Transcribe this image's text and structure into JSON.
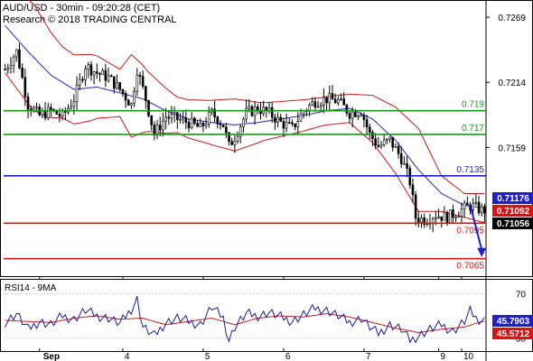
{
  "header": {
    "line1": "AUD/USD - 30min - 09:20:28 (CET)",
    "line2": "Research © 2018 TRADING CENTRAL"
  },
  "rsi_title": "RSI14 - 9MA",
  "chart_data": [
    {
      "type": "candlestick",
      "price_axis": {
        "ticks": [
          0.7269,
          0.7214,
          0.7159
        ],
        "labels": [
          "0.7269",
          "0.7214",
          "0.7159"
        ],
        "range": [
          0.7051,
          0.7282
        ]
      },
      "x_ticks": [
        {
          "label": "Sep",
          "bar": 12
        },
        {
          "label": "4",
          "bar": 41
        },
        {
          "label": "5",
          "bar": 69
        },
        {
          "label": "6",
          "bar": 97
        },
        {
          "label": "7",
          "bar": 125
        },
        {
          "label": "9",
          "bar": 151
        },
        {
          "label": "10",
          "bar": 159
        }
      ],
      "bars_count": 168,
      "levels": [
        {
          "value": 0.719,
          "label": "0.719",
          "color": "#1a9a1a"
        },
        {
          "value": 0.717,
          "label": "0.717",
          "color": "#1a9a1a"
        },
        {
          "value": 0.7135,
          "label": "0.7135",
          "color": "#1f1fcf"
        },
        {
          "value": 0.7095,
          "label": "0.7095",
          "color": "#e01010"
        },
        {
          "value": 0.7065,
          "label": "0.7065",
          "color": "#e01010"
        }
      ],
      "price_tags": [
        {
          "value": 0.71176,
          "label": "0.71176",
          "bg": "#1f1fcf",
          "fg": "#ffffff"
        },
        {
          "value": 0.71092,
          "label": "0.71092",
          "bg": "#e01010",
          "fg": "#ffffff"
        },
        {
          "value": 0.71056,
          "label": "0.71056",
          "bg": "#000000",
          "fg": "#ffffff"
        }
      ],
      "close_path": [
        [
          0,
          0.7225
        ],
        [
          4,
          0.724
        ],
        [
          8,
          0.7195
        ],
        [
          12,
          0.7186
        ],
        [
          16,
          0.719
        ],
        [
          20,
          0.7185
        ],
        [
          24,
          0.72
        ],
        [
          28,
          0.7228
        ],
        [
          32,
          0.7222
        ],
        [
          36,
          0.7218
        ],
        [
          40,
          0.7208
        ],
        [
          44,
          0.7195
        ],
        [
          46,
          0.7225
        ],
        [
          49,
          0.72
        ],
        [
          52,
          0.717
        ],
        [
          56,
          0.7185
        ],
        [
          60,
          0.7183
        ],
        [
          64,
          0.718
        ],
        [
          68,
          0.7175
        ],
        [
          72,
          0.7188
        ],
        [
          76,
          0.7178
        ],
        [
          78,
          0.716
        ],
        [
          80,
          0.7168
        ],
        [
          84,
          0.7188
        ],
        [
          88,
          0.7192
        ],
        [
          92,
          0.7188
        ],
        [
          96,
          0.718
        ],
        [
          100,
          0.7175
        ],
        [
          104,
          0.719
        ],
        [
          108,
          0.7198
        ],
        [
          112,
          0.72
        ],
        [
          116,
          0.7198
        ],
        [
          120,
          0.7188
        ],
        [
          124,
          0.719
        ],
        [
          127,
          0.717
        ],
        [
          130,
          0.716
        ],
        [
          134,
          0.7165
        ],
        [
          138,
          0.715
        ],
        [
          141,
          0.713
        ],
        [
          143,
          0.71
        ],
        [
          146,
          0.7098
        ],
        [
          150,
          0.7102
        ],
        [
          154,
          0.71
        ],
        [
          158,
          0.7105
        ],
        [
          162,
          0.711
        ],
        [
          166,
          0.7106
        ]
      ],
      "ma_path": [
        [
          0,
          0.7262
        ],
        [
          8,
          0.724
        ],
        [
          16,
          0.722
        ],
        [
          24,
          0.7208
        ],
        [
          32,
          0.721
        ],
        [
          40,
          0.7205
        ],
        [
          48,
          0.72
        ],
        [
          56,
          0.719
        ],
        [
          64,
          0.7183
        ],
        [
          72,
          0.718
        ],
        [
          80,
          0.7178
        ],
        [
          88,
          0.718
        ],
        [
          96,
          0.7183
        ],
        [
          104,
          0.7186
        ],
        [
          112,
          0.719
        ],
        [
          120,
          0.7192
        ],
        [
          128,
          0.7183
        ],
        [
          136,
          0.7165
        ],
        [
          144,
          0.714
        ],
        [
          152,
          0.712
        ],
        [
          160,
          0.711
        ],
        [
          166,
          0.7108
        ]
      ],
      "band_width": [
        [
          0,
          0.004
        ],
        [
          10,
          0.0045
        ],
        [
          20,
          0.003
        ],
        [
          30,
          0.0028
        ],
        [
          40,
          0.002
        ],
        [
          44,
          0.0035
        ],
        [
          50,
          0.0025
        ],
        [
          60,
          0.0015
        ],
        [
          70,
          0.0018
        ],
        [
          80,
          0.0022
        ],
        [
          90,
          0.0016
        ],
        [
          100,
          0.0014
        ],
        [
          110,
          0.0012
        ],
        [
          120,
          0.0012
        ],
        [
          128,
          0.002
        ],
        [
          136,
          0.0028
        ],
        [
          144,
          0.0035
        ],
        [
          152,
          0.0015
        ],
        [
          160,
          0.001
        ],
        [
          166,
          0.0012
        ]
      ],
      "forecast_arrow": {
        "from": [
          162,
          0.711
        ],
        "to": [
          166,
          0.7068
        ],
        "color": "#1f1fcf"
      }
    },
    {
      "type": "line",
      "title": "RSI14 - 9MA",
      "y_ticks": [
        70,
        30
      ],
      "y_range": [
        20,
        80
      ],
      "rsi_path": [
        [
          0,
          44
        ],
        [
          4,
          52
        ],
        [
          8,
          38
        ],
        [
          12,
          45
        ],
        [
          16,
          42
        ],
        [
          20,
          50
        ],
        [
          24,
          47
        ],
        [
          28,
          55
        ],
        [
          32,
          50
        ],
        [
          36,
          48
        ],
        [
          40,
          43
        ],
        [
          44,
          56
        ],
        [
          46,
          65
        ],
        [
          48,
          40
        ],
        [
          52,
          32
        ],
        [
          56,
          44
        ],
        [
          60,
          48
        ],
        [
          64,
          45
        ],
        [
          68,
          42
        ],
        [
          72,
          58
        ],
        [
          76,
          48
        ],
        [
          78,
          28
        ],
        [
          80,
          40
        ],
        [
          84,
          52
        ],
        [
          88,
          50
        ],
        [
          92,
          53
        ],
        [
          96,
          49
        ],
        [
          100,
          45
        ],
        [
          104,
          51
        ],
        [
          108,
          57
        ],
        [
          112,
          55
        ],
        [
          116,
          50
        ],
        [
          120,
          44
        ],
        [
          124,
          48
        ],
        [
          127,
          40
        ],
        [
          130,
          34
        ],
        [
          134,
          42
        ],
        [
          138,
          38
        ],
        [
          141,
          28
        ],
        [
          144,
          32
        ],
        [
          148,
          38
        ],
        [
          152,
          42
        ],
        [
          156,
          36
        ],
        [
          160,
          45
        ],
        [
          162,
          54
        ],
        [
          164,
          48
        ],
        [
          166,
          46
        ]
      ],
      "ma_path": [
        [
          0,
          46
        ],
        [
          8,
          45
        ],
        [
          16,
          44
        ],
        [
          24,
          48
        ],
        [
          32,
          50
        ],
        [
          40,
          47
        ],
        [
          48,
          48
        ],
        [
          56,
          42
        ],
        [
          64,
          45
        ],
        [
          72,
          48
        ],
        [
          80,
          42
        ],
        [
          88,
          48
        ],
        [
          96,
          50
        ],
        [
          104,
          49
        ],
        [
          112,
          52
        ],
        [
          120,
          49
        ],
        [
          128,
          44
        ],
        [
          136,
          39
        ],
        [
          144,
          35
        ],
        [
          152,
          38
        ],
        [
          160,
          40
        ],
        [
          166,
          45
        ]
      ],
      "rsi_tag": {
        "value": 45.7903,
        "label": "45.7903",
        "bg": "#1f1fcf",
        "fg": "#ffffff"
      },
      "ma_tag": {
        "value": 45.5712,
        "label": "45.5712",
        "bg": "#e01010",
        "fg": "#ffffff"
      }
    }
  ]
}
